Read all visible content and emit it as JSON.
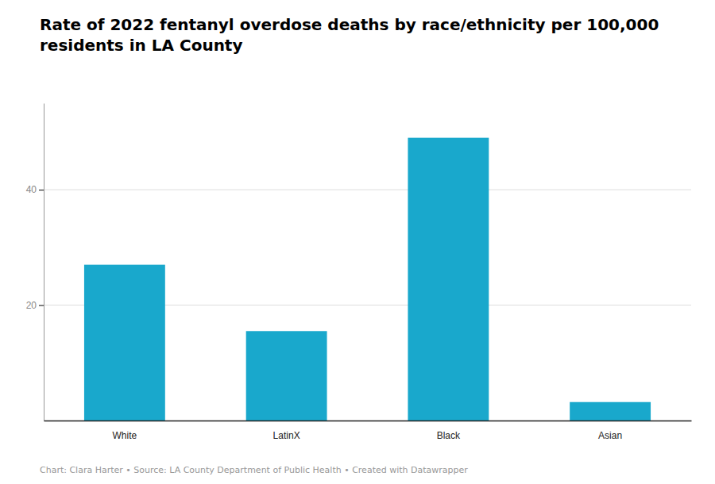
{
  "chart_data": {
    "type": "bar",
    "title": "Rate of 2022 fentanyl overdose deaths by race/ethnicity per 100,000 residents in LA County",
    "categories": [
      "White",
      "LatinX",
      "Black",
      "Asian"
    ],
    "values": [
      27.0,
      15.5,
      49.0,
      3.2
    ],
    "color": "#19a8cc",
    "ylim": [
      0,
      55
    ],
    "yticks": [
      20,
      40
    ],
    "grid": true,
    "annotations": [
      "Chart: Clara Harter • Source: LA County Department of Public Health • Created with Datawrapper"
    ]
  }
}
